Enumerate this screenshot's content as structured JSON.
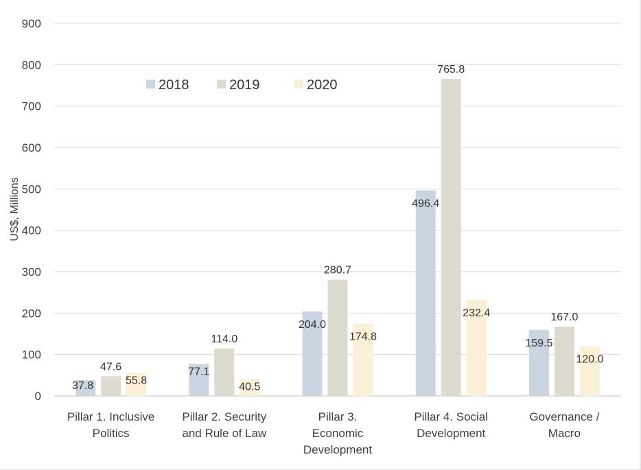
{
  "chart_data": {
    "type": "bar",
    "title": "",
    "xlabel": "",
    "ylabel": "US$, Millions",
    "ylim": [
      0,
      900
    ],
    "y_ticks": [
      0,
      100,
      200,
      300,
      400,
      500,
      600,
      700,
      800,
      900
    ],
    "grid": true,
    "legend_position": "top-left",
    "categories": [
      [
        "Pillar 1. Inclusive",
        "Politics"
      ],
      [
        "Pillar 2. Security",
        "and Rule of Law"
      ],
      [
        "Pillar 3.",
        "Economic",
        "Development"
      ],
      [
        "Pillar 4. Social",
        "Development"
      ],
      [
        "Governance /",
        "Macro"
      ]
    ],
    "series": [
      {
        "name": "2018",
        "color": "#c9d5e1",
        "values": [
          37.8,
          77.1,
          204.0,
          496.4,
          159.5
        ],
        "labels": [
          "37.8",
          "77.1",
          "204.0",
          "496.4",
          "159.5"
        ]
      },
      {
        "name": "2019",
        "color": "#dddad0",
        "values": [
          47.6,
          114.0,
          280.7,
          765.8,
          167.0
        ],
        "labels": [
          "47.6",
          "114.0",
          "280.7",
          "765.8",
          "167.0"
        ]
      },
      {
        "name": "2020",
        "color": "#fbefd5",
        "values": [
          55.8,
          40.5,
          174.8,
          232.4,
          120.0
        ],
        "labels": [
          "55.8",
          "40.5",
          "174.8",
          "232.4",
          "120.0"
        ]
      }
    ]
  }
}
